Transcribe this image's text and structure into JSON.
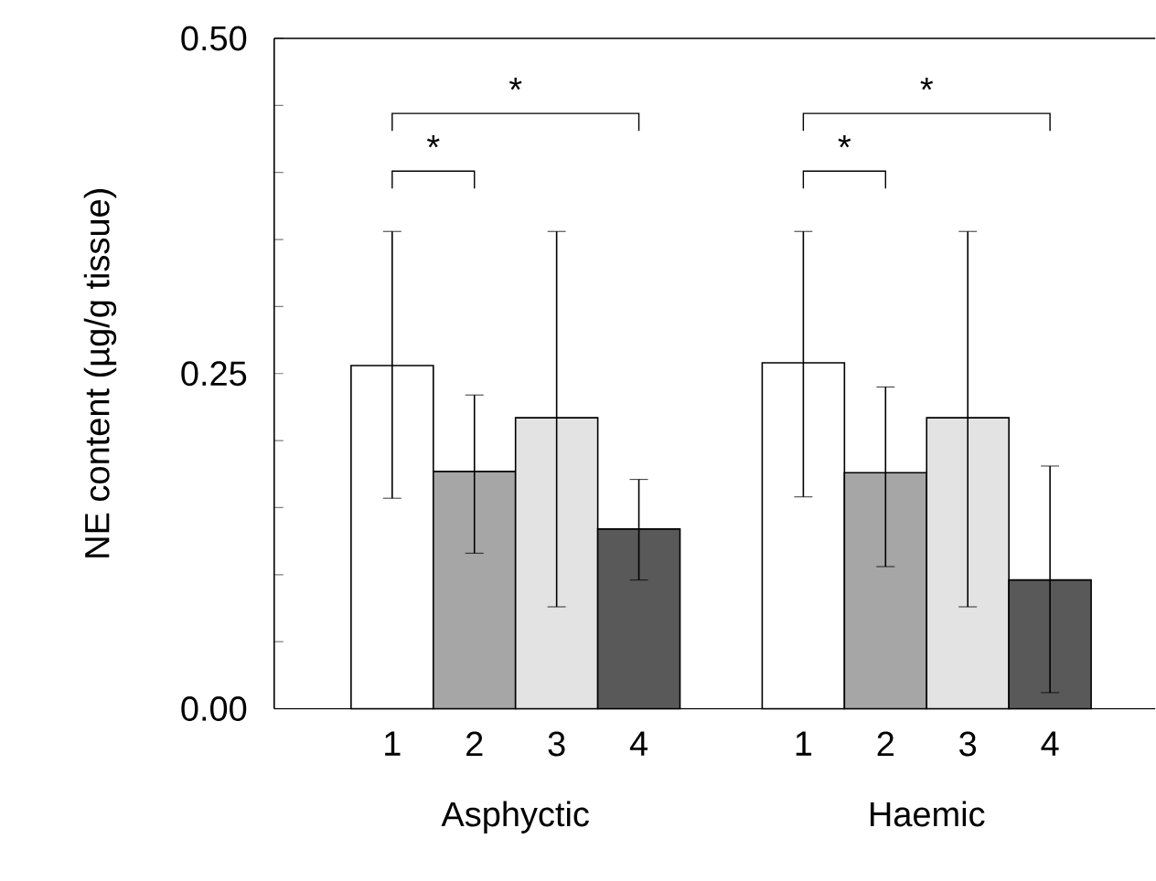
{
  "chart_data": {
    "type": "bar",
    "ylabel": "NE content (µg/g tissue)",
    "categories": [
      "Asphyctic",
      "Haemic"
    ],
    "series": [
      {
        "name": "1",
        "color": "#ffffff",
        "values": [
          0.256,
          0.258
        ],
        "errors": [
          [
            0.157,
            0.356
          ],
          [
            0.158,
            0.356
          ]
        ]
      },
      {
        "name": "2",
        "color": "#a6a6a6",
        "values": [
          0.177,
          0.176
        ],
        "errors": [
          [
            0.116,
            0.234
          ],
          [
            0.106,
            0.24
          ]
        ]
      },
      {
        "name": "3",
        "color": "#e3e3e3",
        "values": [
          0.217,
          0.217
        ],
        "errors": [
          [
            0.076,
            0.356
          ],
          [
            0.076,
            0.356
          ]
        ]
      },
      {
        "name": "4",
        "color": "#595959",
        "values": [
          0.134,
          0.096
        ],
        "errors": [
          [
            0.096,
            0.171
          ],
          [
            0.012,
            0.181
          ]
        ]
      }
    ],
    "ylim": [
      0,
      0.5
    ],
    "yticks": [
      {
        "value": 0,
        "label": "0.00"
      },
      {
        "value": 0.05,
        "label": null
      },
      {
        "value": 0.1,
        "label": null
      },
      {
        "value": 0.15,
        "label": null
      },
      {
        "value": 0.2,
        "label": null
      },
      {
        "value": 0.25,
        "label": "0.25"
      },
      {
        "value": 0.3,
        "label": null
      },
      {
        "value": 0.35,
        "label": null
      },
      {
        "value": 0.4,
        "label": null
      },
      {
        "value": 0.45,
        "label": null
      },
      {
        "value": 0.5,
        "label": "0.50"
      }
    ],
    "annotations": [
      "*",
      "*",
      "*",
      "*"
    ]
  }
}
